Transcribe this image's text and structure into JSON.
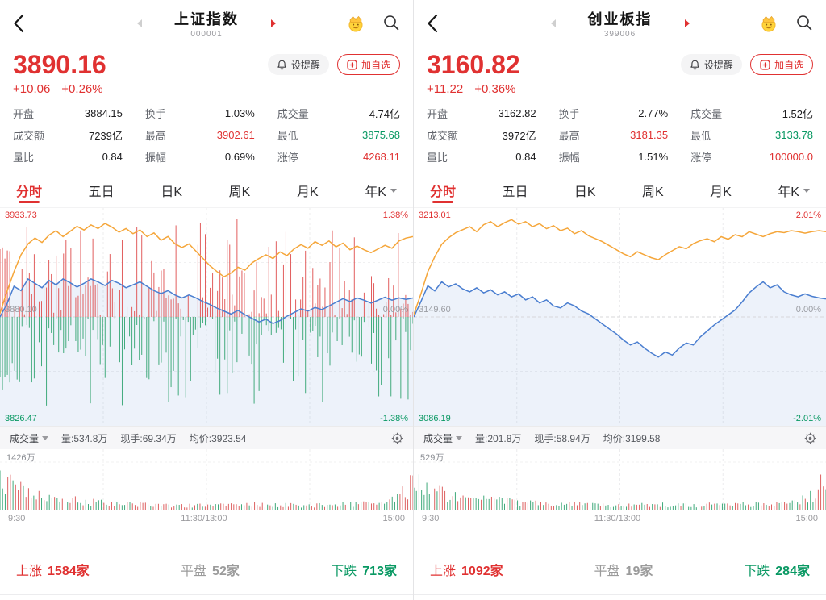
{
  "ui": {
    "alert_button": "设提醒",
    "watch_button": "加自选",
    "tabs": [
      "分时",
      "五日",
      "日K",
      "周K",
      "月K",
      "年K"
    ],
    "volume_indicator": "成交量",
    "axis_labels": [
      "9:30",
      "11:30/13:00",
      "15:00"
    ]
  },
  "colors": {
    "up": "#e03131",
    "down": "#089862",
    "flat": "#9b9b9b",
    "orange": "#f5a63a",
    "blue": "#4a7ed0"
  },
  "panels": [
    {
      "title": "上证指数",
      "code": "000001",
      "price": "3890.16",
      "change": "+10.06",
      "change_pct": "+0.26%",
      "stats": [
        {
          "label": "开盘",
          "value": "3884.15",
          "tone": "normal"
        },
        {
          "label": "换手",
          "value": "1.03%",
          "tone": "normal"
        },
        {
          "label": "成交量",
          "value": "4.74亿",
          "tone": "normal"
        },
        {
          "label": "成交额",
          "value": "7239亿",
          "tone": "normal"
        },
        {
          "label": "最高",
          "value": "3902.61",
          "tone": "up"
        },
        {
          "label": "最低",
          "value": "3875.68",
          "tone": "down"
        },
        {
          "label": "量比",
          "value": "0.84",
          "tone": "normal"
        },
        {
          "label": "振幅",
          "value": "0.69%",
          "tone": "normal"
        },
        {
          "label": "涨停",
          "value": "4268.11",
          "tone": "up"
        }
      ],
      "chart": {
        "high": "3933.73",
        "mid": "3880.10",
        "low": "3826.47",
        "pct_high": "1.38%",
        "pct_mid": "0.00%",
        "pct_low": "-1.38%",
        "max_pct": 1.38,
        "mid_bars": true,
        "bars_seed": 11,
        "bars_count": 170,
        "up_max": 0.44,
        "down_max": 0.42,
        "blue": [
          0.0,
          0.18,
          0.42,
          0.36,
          0.52,
          0.46,
          0.4,
          0.5,
          0.44,
          0.52,
          0.47,
          0.41,
          0.46,
          0.52,
          0.48,
          0.43,
          0.5,
          0.46,
          0.4,
          0.44,
          0.48,
          0.42,
          0.36,
          0.32,
          0.36,
          0.3,
          0.26,
          0.3,
          0.26,
          0.21,
          0.17,
          0.12,
          0.08,
          0.04,
          0.09,
          0.03,
          -0.02,
          -0.07,
          -0.03,
          -0.09,
          -0.05,
          0.01,
          0.06,
          0.11,
          0.08,
          0.13,
          0.1,
          0.15,
          0.2,
          0.25,
          0.21,
          0.26,
          0.23,
          0.19,
          0.23,
          0.27,
          0.23,
          0.26,
          0.24,
          0.26
        ],
        "orange": [
          0.05,
          0.35,
          0.62,
          0.85,
          1.0,
          1.08,
          1.02,
          1.12,
          1.18,
          1.1,
          1.17,
          1.24,
          1.19,
          1.26,
          1.21,
          1.28,
          1.23,
          1.16,
          1.21,
          1.14,
          1.19,
          1.1,
          1.15,
          1.05,
          1.1,
          1.0,
          0.95,
          1.0,
          0.9,
          0.8,
          0.7,
          0.62,
          0.55,
          0.6,
          0.68,
          0.64,
          0.74,
          0.8,
          0.85,
          0.8,
          0.89,
          0.84,
          0.93,
          0.99,
          0.94,
          1.03,
          0.98,
          1.04,
          0.96,
          1.01,
          0.92,
          0.97,
          0.92,
          0.88,
          0.93,
          0.98,
          0.94,
          1.04,
          1.08,
          1.1
        ]
      },
      "volume": {
        "label_max": "1426万",
        "info1": "量:534.8万",
        "info2": "现手:69.34万",
        "info3": "均价:3923.54",
        "seed": 5,
        "bars_count": 160,
        "envelope": [
          [
            0,
            1.0
          ],
          [
            0.03,
            0.7
          ],
          [
            0.08,
            0.45
          ],
          [
            0.15,
            0.3
          ],
          [
            0.25,
            0.2
          ],
          [
            0.35,
            0.16
          ],
          [
            0.45,
            0.13
          ],
          [
            0.5,
            0.12
          ],
          [
            0.55,
            0.18
          ],
          [
            0.65,
            0.13
          ],
          [
            0.75,
            0.14
          ],
          [
            0.85,
            0.16
          ],
          [
            0.93,
            0.25
          ],
          [
            0.98,
            0.55
          ],
          [
            1,
            0.9
          ]
        ]
      },
      "breadth": {
        "up_label": "上涨",
        "up_value": "1584家",
        "flat_label": "平盘",
        "flat_value": "52家",
        "down_label": "下跌",
        "down_value": "713家"
      }
    },
    {
      "title": "创业板指",
      "code": "399006",
      "price": "3160.82",
      "change": "+11.22",
      "change_pct": "+0.36%",
      "stats": [
        {
          "label": "开盘",
          "value": "3162.82",
          "tone": "normal"
        },
        {
          "label": "换手",
          "value": "2.77%",
          "tone": "normal"
        },
        {
          "label": "成交量",
          "value": "1.52亿",
          "tone": "normal"
        },
        {
          "label": "成交额",
          "value": "3972亿",
          "tone": "normal"
        },
        {
          "label": "最高",
          "value": "3181.35",
          "tone": "up"
        },
        {
          "label": "最低",
          "value": "3133.78",
          "tone": "down"
        },
        {
          "label": "量比",
          "value": "0.84",
          "tone": "normal"
        },
        {
          "label": "振幅",
          "value": "1.51%",
          "tone": "normal"
        },
        {
          "label": "涨停",
          "value": "100000.0",
          "tone": "up"
        }
      ],
      "chart": {
        "high": "3213.01",
        "mid": "3149.60",
        "low": "3086.19",
        "pct_high": "2.01%",
        "pct_mid": "0.00%",
        "pct_low": "-2.01%",
        "max_pct": 2.01,
        "mid_bars": false,
        "bars_seed": 0,
        "bars_count": 0,
        "up_max": 0,
        "down_max": 0,
        "blue": [
          0.0,
          0.3,
          0.62,
          0.52,
          0.7,
          0.6,
          0.66,
          0.56,
          0.5,
          0.58,
          0.48,
          0.54,
          0.44,
          0.5,
          0.4,
          0.46,
          0.34,
          0.4,
          0.28,
          0.34,
          0.22,
          0.18,
          0.28,
          0.22,
          0.12,
          0.06,
          -0.04,
          -0.14,
          -0.24,
          -0.34,
          -0.46,
          -0.56,
          -0.5,
          -0.62,
          -0.72,
          -0.8,
          -0.7,
          -0.76,
          -0.62,
          -0.52,
          -0.56,
          -0.4,
          -0.28,
          -0.16,
          -0.06,
          0.04,
          0.14,
          0.3,
          0.48,
          0.6,
          0.7,
          0.58,
          0.64,
          0.5,
          0.44,
          0.4,
          0.46,
          0.41,
          0.38,
          0.36
        ],
        "orange": [
          0.05,
          0.45,
          0.9,
          1.2,
          1.45,
          1.58,
          1.68,
          1.74,
          1.8,
          1.7,
          1.84,
          1.9,
          1.8,
          1.88,
          1.94,
          1.85,
          1.9,
          1.8,
          1.86,
          1.76,
          1.82,
          1.72,
          1.77,
          1.66,
          1.72,
          1.62,
          1.56,
          1.5,
          1.42,
          1.34,
          1.26,
          1.2,
          1.3,
          1.24,
          1.18,
          1.14,
          1.24,
          1.32,
          1.4,
          1.36,
          1.46,
          1.52,
          1.56,
          1.5,
          1.6,
          1.55,
          1.64,
          1.6,
          1.7,
          1.65,
          1.6,
          1.66,
          1.7,
          1.68,
          1.72,
          1.7,
          1.67,
          1.7,
          1.72,
          1.7
        ]
      },
      "volume": {
        "label_max": "529万",
        "info1": "量:201.8万",
        "info2": "现手:58.94万",
        "info3": "均价:3199.58",
        "seed": 9,
        "bars_count": 160,
        "envelope": [
          [
            0,
            1.0
          ],
          [
            0.04,
            0.6
          ],
          [
            0.1,
            0.4
          ],
          [
            0.18,
            0.28
          ],
          [
            0.3,
            0.2
          ],
          [
            0.45,
            0.14
          ],
          [
            0.55,
            0.16
          ],
          [
            0.65,
            0.13
          ],
          [
            0.75,
            0.15
          ],
          [
            0.85,
            0.17
          ],
          [
            0.93,
            0.22
          ],
          [
            0.97,
            0.5
          ],
          [
            1,
            0.85
          ]
        ]
      },
      "breadth": {
        "up_label": "上涨",
        "up_value": "1092家",
        "flat_label": "平盘",
        "flat_value": "19家",
        "down_label": "下跌",
        "down_value": "284家"
      }
    }
  ]
}
